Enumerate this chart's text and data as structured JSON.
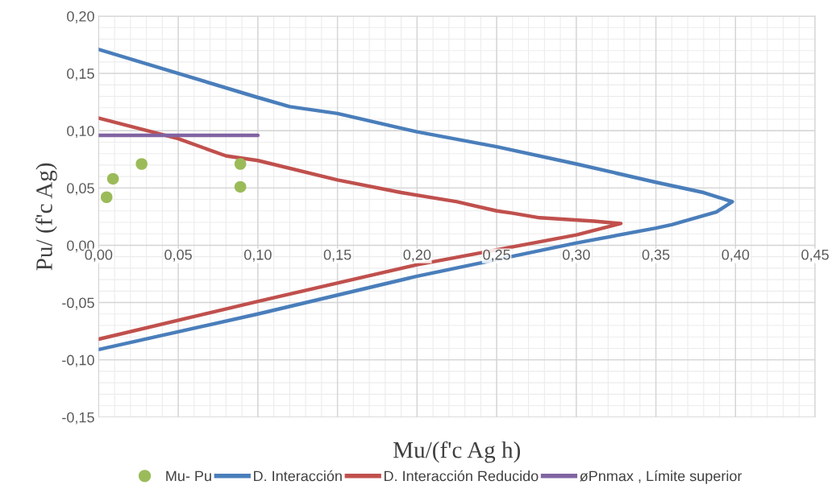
{
  "chart_data": {
    "type": "line",
    "xlabel": "Mu/(f'c Ag h)",
    "ylabel": "Pu/ (f'c Ag)",
    "xlim": [
      0,
      0.45
    ],
    "ylim": [
      -0.15,
      0.2
    ],
    "xticks": [
      {
        "value": 0,
        "label": "0,00"
      },
      {
        "value": 0.05,
        "label": "0,05"
      },
      {
        "value": 0.1,
        "label": "0,10"
      },
      {
        "value": 0.15,
        "label": "0,15"
      },
      {
        "value": 0.2,
        "label": "0,20"
      },
      {
        "value": 0.25,
        "label": "0,25"
      },
      {
        "value": 0.3,
        "label": "0,30"
      },
      {
        "value": 0.35,
        "label": "0,35"
      },
      {
        "value": 0.4,
        "label": "0,40"
      },
      {
        "value": 0.45,
        "label": "0,45"
      }
    ],
    "yticks": [
      {
        "value": -0.15,
        "label": "-0,15"
      },
      {
        "value": -0.1,
        "label": "-0,10"
      },
      {
        "value": -0.05,
        "label": "-0,05"
      },
      {
        "value": 0,
        "label": "0,00"
      },
      {
        "value": 0.05,
        "label": "0,05"
      },
      {
        "value": 0.1,
        "label": "0,10"
      },
      {
        "value": 0.15,
        "label": "0,15"
      },
      {
        "value": 0.2,
        "label": "0,20"
      }
    ],
    "grid": true,
    "legend": "bottom",
    "series": [
      {
        "name": "Mu- Pu",
        "type": "scatter",
        "marker": "circle",
        "color": "#9bbb59",
        "x": [
          0.005,
          0.009,
          0.027,
          0.089,
          0.089
        ],
        "values": [
          0.042,
          0.058,
          0.071,
          0.071,
          0.051
        ]
      },
      {
        "name": "D. Interacción",
        "color": "#4a7ebb",
        "x": [
          0,
          0.05,
          0.1,
          0.12,
          0.15,
          0.2,
          0.25,
          0.3,
          0.35,
          0.38,
          0.398,
          0.388,
          0.36,
          0.35,
          0.3,
          0.2,
          0.1,
          0
        ],
        "values": [
          0.171,
          0.15,
          0.129,
          0.121,
          0.115,
          0.099,
          0.086,
          0.071,
          0.055,
          0.046,
          0.038,
          0.029,
          0.018,
          0.015,
          0.002,
          -0.027,
          -0.06,
          -0.091
        ]
      },
      {
        "name": "D. Interacción Reducido",
        "color": "#c0504d",
        "x": [
          0,
          0.05,
          0.08,
          0.1,
          0.15,
          0.19,
          0.225,
          0.25,
          0.26,
          0.277,
          0.311,
          0.328,
          0.3,
          0.2,
          0.1,
          0
        ],
        "values": [
          0.111,
          0.093,
          0.078,
          0.074,
          0.057,
          0.046,
          0.038,
          0.03,
          0.028,
          0.024,
          0.021,
          0.019,
          0.009,
          -0.017,
          -0.049,
          -0.082
        ]
      },
      {
        "name": "øPnmax , Límite superior",
        "color": "#8064a2",
        "x": [
          0,
          0.1
        ],
        "values": [
          0.096,
          0.096
        ]
      }
    ]
  }
}
